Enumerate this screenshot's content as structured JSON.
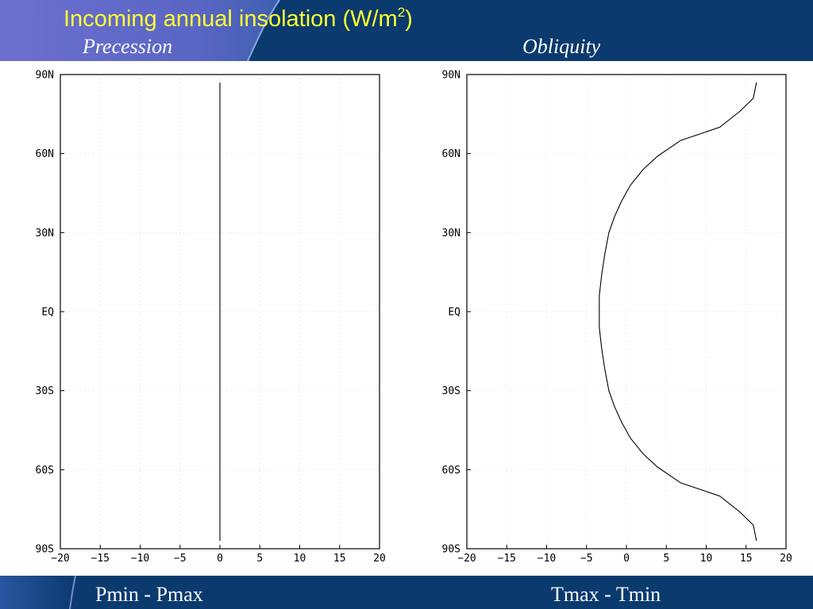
{
  "header": {
    "title": "Incoming annual insolation (W/m",
    "title_sup": "2",
    "title_end": ")",
    "left_subtitle": "Precession",
    "right_subtitle": "Obliquity"
  },
  "footer": {
    "left_label": "Pmin - Pmax",
    "right_label": "Tmax - Tmin"
  },
  "colors": {
    "header_bg": "#0a3a6e",
    "title": "#ffff33",
    "subtitle": "#ffffff"
  },
  "chart_data": [
    {
      "type": "line",
      "name": "precession",
      "xlim": [
        -20,
        20
      ],
      "ylim": [
        -90,
        90
      ],
      "xticks": [
        -20,
        -15,
        -10,
        -5,
        0,
        5,
        10,
        15,
        20
      ],
      "xtick_labels": [
        "−20",
        "−15",
        "−10",
        "−5",
        "0",
        "5",
        "10",
        "15",
        "20"
      ],
      "yticks": [
        90,
        60,
        30,
        0,
        -30,
        -60,
        -90
      ],
      "ytick_labels": [
        "90N",
        "60N",
        "30N",
        "EQ",
        "30S",
        "60S",
        "90S"
      ],
      "grid": true,
      "series": [
        {
          "x": [
            0,
            0,
            0,
            0,
            0,
            0,
            0,
            0,
            0
          ],
          "y": [
            87,
            60,
            30,
            8,
            0,
            -8,
            -30,
            -60,
            -87
          ]
        }
      ]
    },
    {
      "type": "line",
      "name": "obliquity",
      "xlim": [
        -20,
        20
      ],
      "ylim": [
        -90,
        90
      ],
      "xticks": [
        -20,
        -15,
        -10,
        -5,
        0,
        5,
        10,
        15,
        20
      ],
      "xtick_labels": [
        "−20",
        "−15",
        "−10",
        "−5",
        "0",
        "5",
        "10",
        "15",
        "20"
      ],
      "yticks": [
        90,
        60,
        30,
        0,
        -30,
        -60,
        -90
      ],
      "ytick_labels": [
        "90N",
        "60N",
        "30N",
        "EQ",
        "30S",
        "60S",
        "90S"
      ],
      "grid": true,
      "series": [
        {
          "x": [
            16.3,
            15.9,
            14.2,
            11.7,
            6.8,
            3.9,
            2.1,
            0.5,
            -0.6,
            -1.5,
            -2.2,
            -2.7,
            -3.1,
            -3.4,
            -3.4,
            -3.4,
            -3.1,
            -2.7,
            -2.2,
            -1.5,
            -0.6,
            0.5,
            2.1,
            3.9,
            6.8,
            11.7,
            14.2,
            15.9,
            16.3
          ],
          "y": [
            87,
            81,
            76,
            70,
            65,
            59,
            54,
            48,
            42,
            36,
            30,
            22,
            14,
            6,
            0,
            -6,
            -14,
            -22,
            -30,
            -36,
            -42,
            -48,
            -54,
            -59,
            -65,
            -70,
            -76,
            -81,
            -87
          ]
        }
      ]
    }
  ]
}
